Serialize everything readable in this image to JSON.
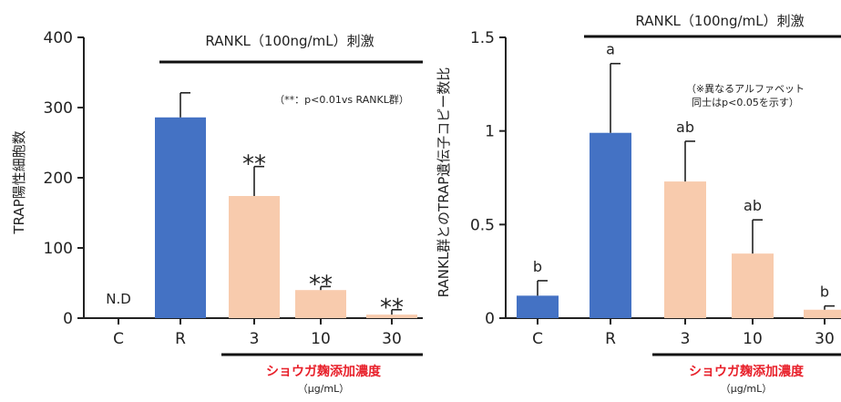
{
  "colors": {
    "blue": "#4472c4",
    "peach": "#f8cbad",
    "axis": "#222222",
    "red_title": "#e8202a"
  },
  "chart_data": [
    {
      "type": "bar",
      "categories": [
        "C",
        "R",
        "3",
        "10",
        "30"
      ],
      "values": [
        0,
        286,
        174,
        40,
        5
      ],
      "errors": [
        0,
        35,
        42,
        5,
        7
      ],
      "bar_colors": [
        "blue",
        "blue",
        "peach",
        "peach",
        "peach"
      ],
      "bar_labels": [
        "N.D",
        "",
        "**",
        "**",
        "**"
      ],
      "ylabel": "TRAP陽性細胞数",
      "ylim": [
        0,
        400
      ],
      "yticks": [
        "0",
        "100",
        "200",
        "300",
        "400"
      ],
      "ytick_values": [
        0,
        100,
        200,
        300,
        400
      ],
      "bracket_label": "RANKL（100ng/mL）刺激",
      "note": "（**：p<0.01vs RANKL群）",
      "xtitle": "ショウガ麹添加濃度",
      "xunit": "（μg/mL）"
    },
    {
      "type": "bar",
      "categories": [
        "C",
        "R",
        "3",
        "10",
        "30"
      ],
      "values": [
        0.12,
        0.99,
        0.73,
        0.345,
        0.045
      ],
      "errors": [
        0.08,
        0.37,
        0.215,
        0.18,
        0.02
      ],
      "bar_colors": [
        "blue",
        "blue",
        "peach",
        "peach",
        "peach"
      ],
      "bar_labels": [
        "b",
        "a",
        "ab",
        "ab",
        "b"
      ],
      "ylabel": "RANKL群とのTRAP遺伝子コピー数比",
      "ylim": [
        0,
        1.5
      ],
      "yticks": [
        "0",
        "0.5",
        "1",
        "1.5"
      ],
      "ytick_values": [
        0,
        0.5,
        1,
        1.5
      ],
      "bracket_label": "RANKL（100ng/mL）刺激",
      "note_lines": [
        "（※異なるアルファベット",
        "同士はp<0.05を示す）"
      ],
      "xtitle": "ショウガ麹添加濃度",
      "xunit": "（μg/mL）"
    }
  ]
}
